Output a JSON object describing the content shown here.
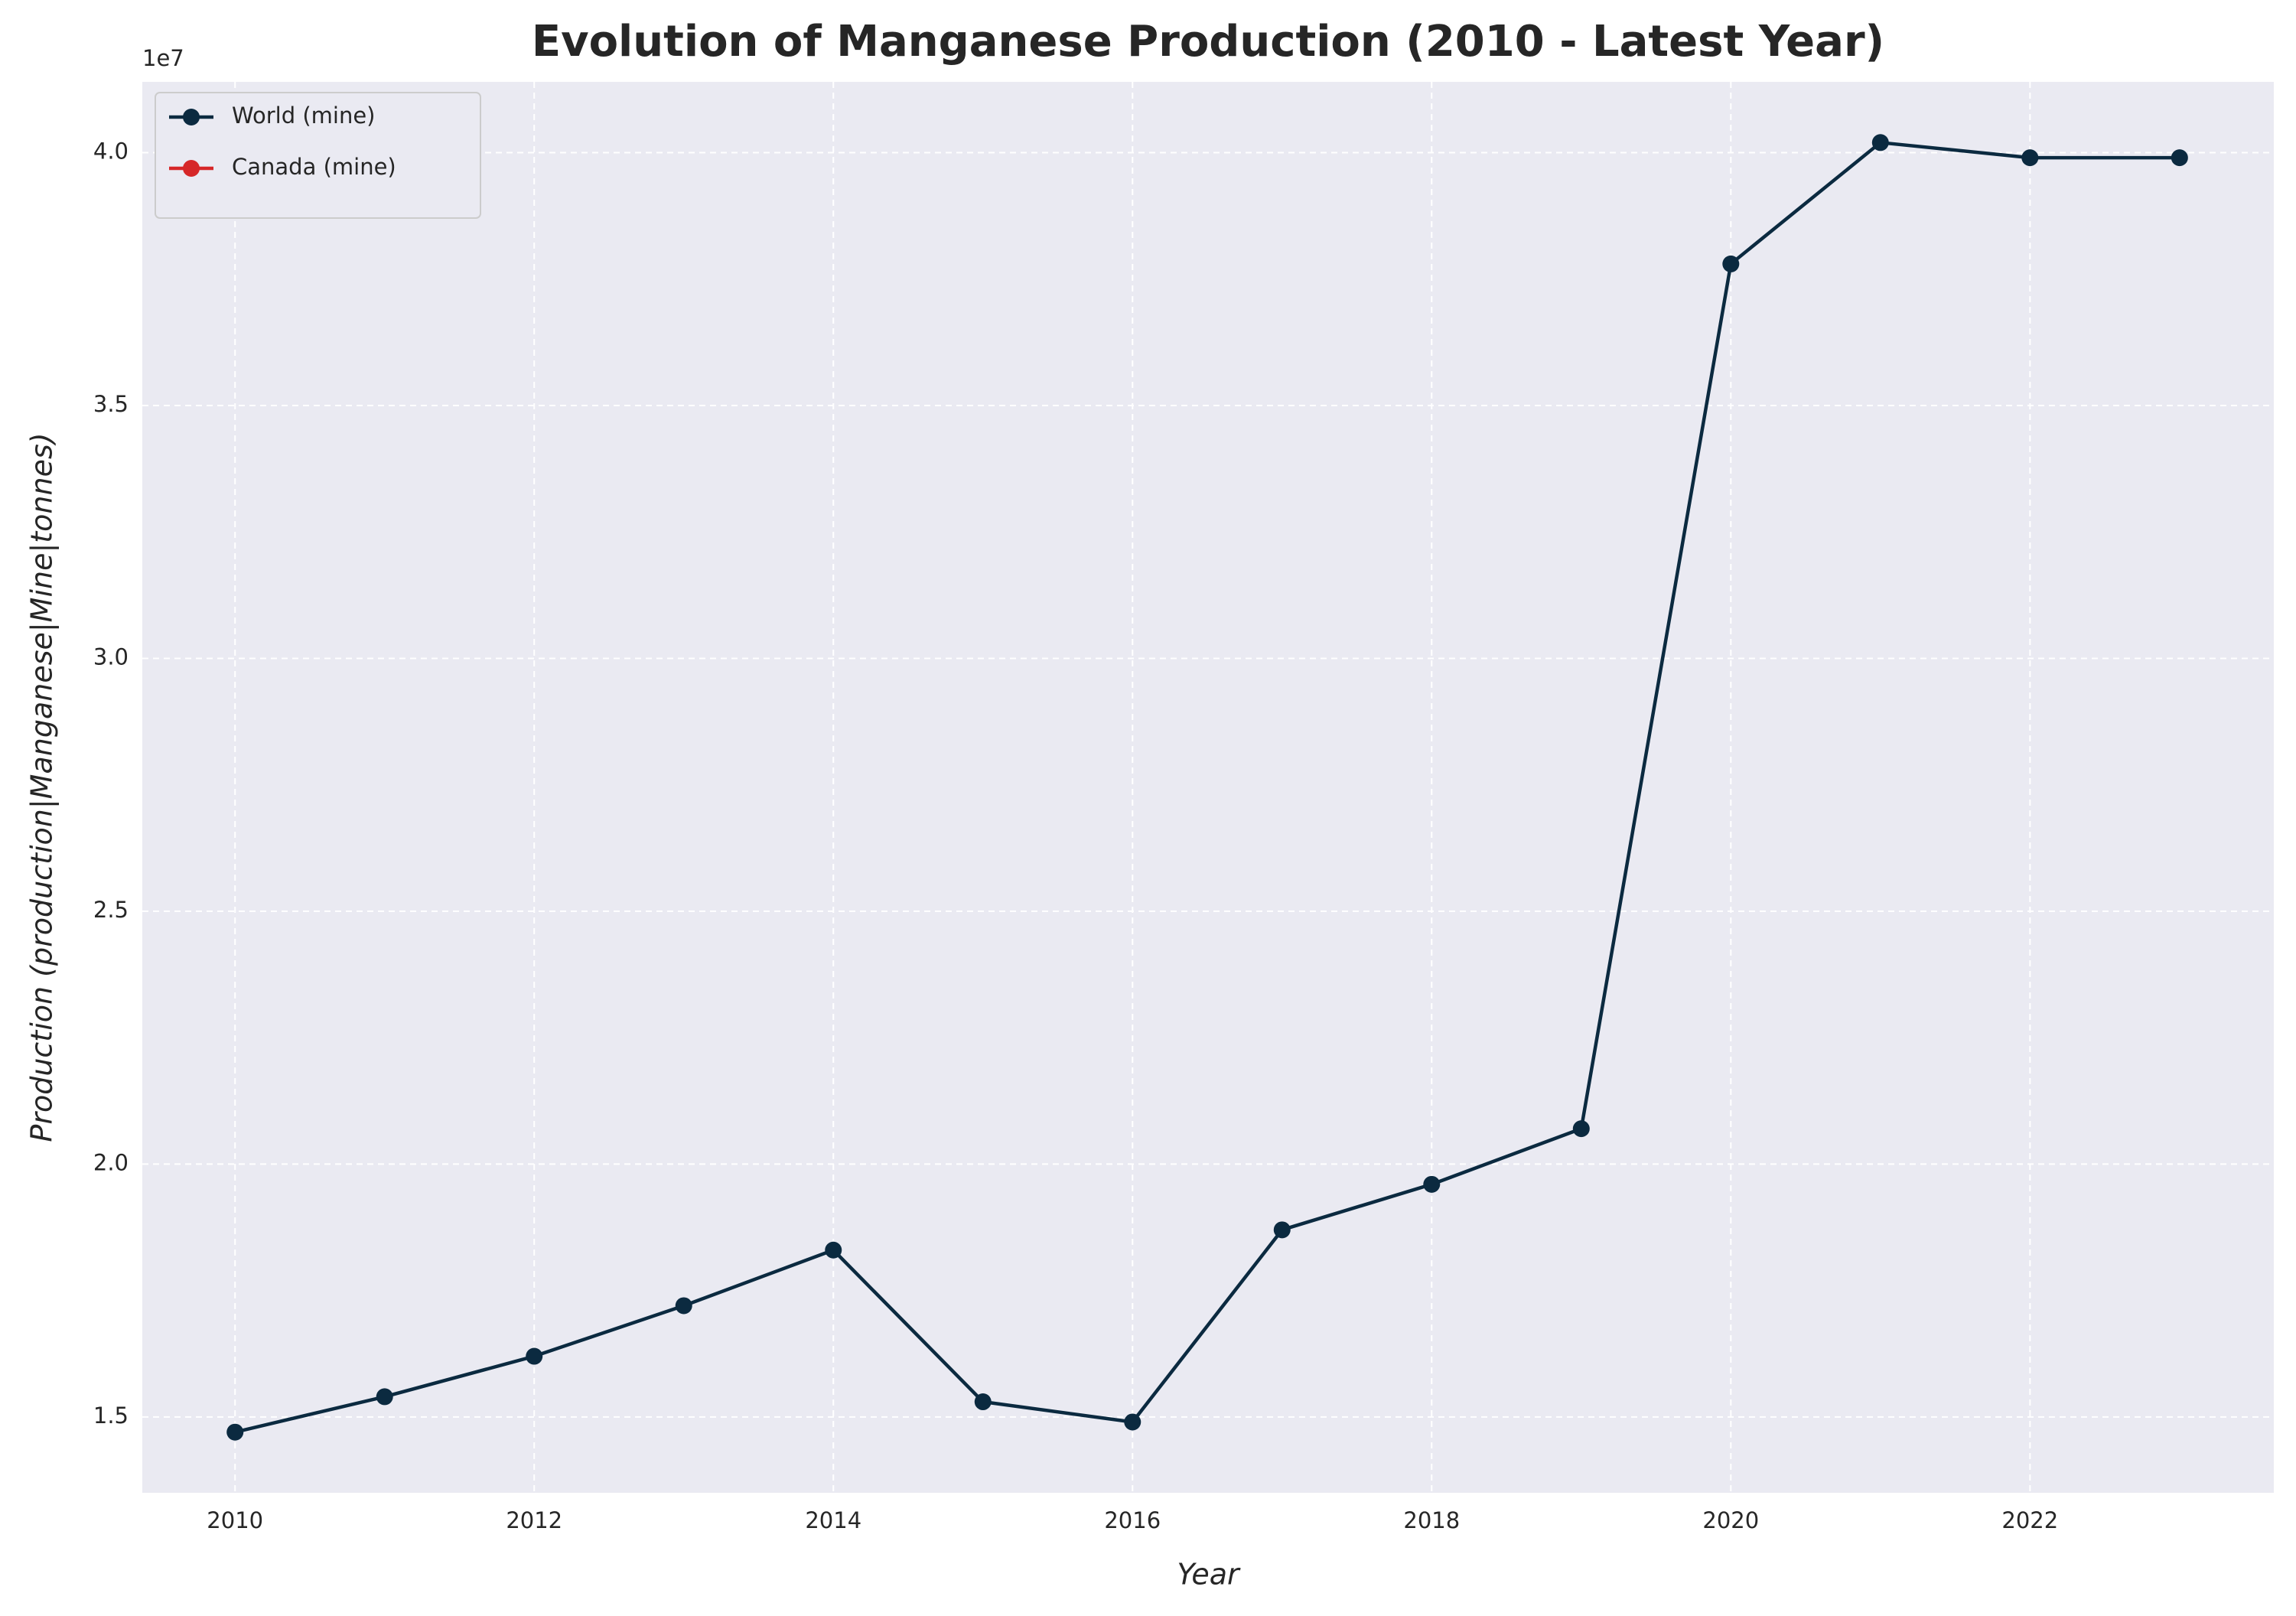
{
  "chart_data": {
    "type": "line",
    "title": "Evolution of Manganese Production (2010 - Latest Year)",
    "xlabel": "Year",
    "ylabel": "Production (production|Manganese|Mine|tonnes)",
    "y_offset_label": "1e7",
    "x": [
      2010,
      2011,
      2012,
      2013,
      2014,
      2015,
      2016,
      2017,
      2018,
      2019,
      2020,
      2021,
      2022,
      2023
    ],
    "series": [
      {
        "name": "World (mine)",
        "color": "#0b2a40",
        "values": [
          1.47,
          1.54,
          1.62,
          1.72,
          1.83,
          1.53,
          1.49,
          1.87,
          1.96,
          2.07,
          3.78,
          4.02,
          3.99,
          3.99
        ]
      },
      {
        "name": "Canada (mine)",
        "color": "#d62728",
        "values": [
          null,
          null,
          null,
          null,
          null,
          null,
          null,
          null,
          null,
          null,
          null,
          null,
          null,
          null
        ]
      }
    ],
    "xlim": [
      2009.38,
      2023.63
    ],
    "xticks": [
      2010,
      2012,
      2014,
      2016,
      2018,
      2020,
      2022
    ],
    "ylim": [
      1.35,
      4.14
    ],
    "yticks": [
      1.5,
      {
        "value": 2,
        "label": "2.0"
      },
      2.5,
      {
        "value": 3,
        "label": "3.0"
      },
      3.5,
      {
        "value": 4,
        "label": "4.0"
      }
    ],
    "grid": true,
    "legend": "upper left"
  }
}
